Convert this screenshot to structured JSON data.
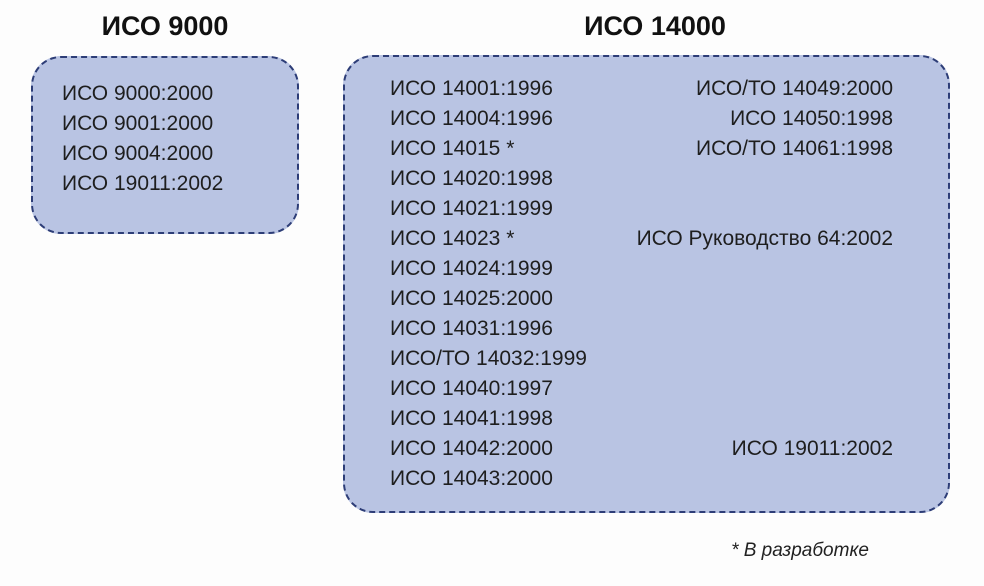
{
  "iso9000": {
    "title": "ИСО 9000",
    "items": [
      "ИСО 9000:2000",
      "ИСО 9001:2000",
      "ИСО 9004:2000",
      "ИСО 19011:2002"
    ]
  },
  "iso14000": {
    "title": "ИСО 14000",
    "left_items": [
      "ИСО 14001:1996",
      "ИСО 14004:1996",
      "ИСО 14015 *",
      "ИСО 14020:1998",
      "ИСО 14021:1999",
      "ИСО 14023 *",
      "ИСО 14024:1999",
      "ИСО 14025:2000",
      "ИСО 14031:1996",
      "ИСО/ТО 14032:1999",
      "ИСО 14040:1997",
      "ИСО 14041:1998",
      "ИСО 14042:2000",
      "ИСО 14043:2000"
    ],
    "right_items": [
      "ИСО/ТО 14049:2000",
      "ИСО 14050:1998",
      "ИСО/ТО 14061:1998",
      "ИСО Руководство 64:2002",
      "ИСО 19011:2002"
    ]
  },
  "footnote": "* В разработке",
  "colors": {
    "box_fill": "#b9c4e3",
    "box_border": "#2d3d77"
  }
}
